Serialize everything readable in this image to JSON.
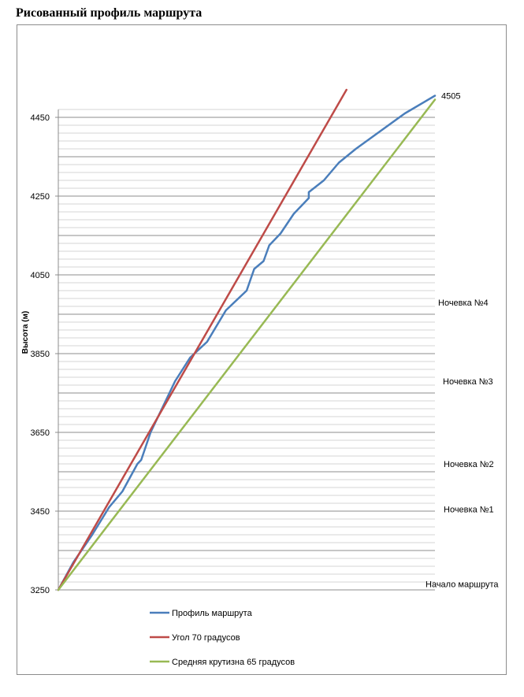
{
  "page_title": "Рисованный профиль маршрута",
  "chart_data": {
    "type": "line",
    "title": "",
    "xlabel": "",
    "ylabel": "Высота (м)",
    "ylim": [
      3250,
      4505
    ],
    "y_ticks": [
      3250,
      3450,
      3650,
      3850,
      4050,
      4250,
      4450
    ],
    "xlim": [
      0,
      1
    ],
    "grid": true,
    "legend_position": "bottom",
    "series": [
      {
        "name": "Профиль маршрута",
        "color": "#4a7ebb",
        "points": [
          [
            0,
            3250
          ],
          [
            0.04,
            3320
          ],
          [
            0.09,
            3390
          ],
          [
            0.135,
            3460
          ],
          [
            0.17,
            3500
          ],
          [
            0.21,
            3570
          ],
          [
            0.22,
            3580
          ],
          [
            0.245,
            3650
          ],
          [
            0.31,
            3780
          ],
          [
            0.35,
            3840
          ],
          [
            0.395,
            3880
          ],
          [
            0.445,
            3960
          ],
          [
            0.5,
            4010
          ],
          [
            0.52,
            4065
          ],
          [
            0.545,
            4085
          ],
          [
            0.56,
            4125
          ],
          [
            0.59,
            4155
          ],
          [
            0.625,
            4205
          ],
          [
            0.665,
            4245
          ],
          [
            0.665,
            4260
          ],
          [
            0.705,
            4290
          ],
          [
            0.745,
            4335
          ],
          [
            0.79,
            4370
          ],
          [
            0.92,
            4460
          ],
          [
            1.0,
            4505
          ]
        ]
      },
      {
        "name": "Угол 70 градусов",
        "color": "#be4b48",
        "points": [
          [
            0,
            3250
          ],
          [
            0.765,
            4520
          ]
        ]
      },
      {
        "name": "Средняя крутизна 65 градусов",
        "color": "#98b954",
        "points": [
          [
            0,
            3250
          ],
          [
            1.0,
            4495
          ]
        ]
      }
    ],
    "annotations": [
      {
        "text": "4505",
        "y": 4505
      },
      {
        "text": "Ночевка №4",
        "y": 3980
      },
      {
        "text": "Ночевка №3",
        "y": 3780
      },
      {
        "text": "Ночевка №2",
        "y": 3570
      },
      {
        "text": "Ночевка №1",
        "y": 3455
      },
      {
        "text": "Начало маршрута",
        "y": 3265
      }
    ]
  }
}
